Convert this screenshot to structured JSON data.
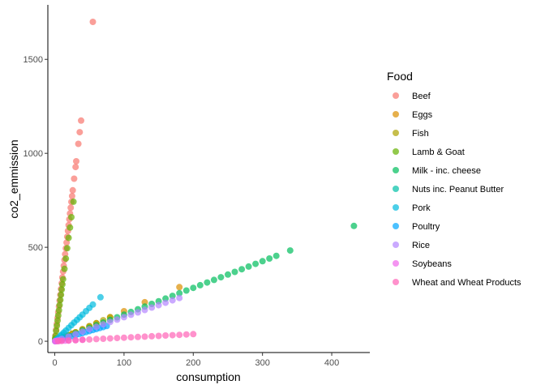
{
  "chart_data": {
    "type": "scatter",
    "title": "",
    "xlabel": "consumption",
    "ylabel": "co2_emmission",
    "xlim": [
      -10,
      455
    ],
    "ylim": [
      -60,
      1790
    ],
    "x_ticks": [
      0,
      100,
      200,
      300,
      400
    ],
    "y_ticks": [
      0,
      500,
      1000,
      1500
    ],
    "grid": false,
    "legend": {
      "title": "Food",
      "position": "right"
    },
    "point_opacity": 0.7,
    "series": [
      {
        "name": "Beef",
        "color": "#F8766D",
        "slope": 30.9,
        "x": [
          0.5,
          1,
          2,
          3,
          4,
          5,
          6,
          7,
          8,
          9,
          10,
          11,
          12,
          13,
          14,
          15,
          16,
          17,
          18,
          19,
          20,
          21,
          22,
          23,
          24,
          25,
          26,
          28,
          30,
          31,
          34,
          36,
          38,
          55
        ]
      },
      {
        "name": "Eggs",
        "color": "#DB8E00",
        "slope": 1.6,
        "x": [
          1,
          3,
          5,
          8,
          10,
          13,
          16,
          20,
          25,
          30,
          40,
          50,
          60,
          80,
          100,
          130,
          180
        ]
      },
      {
        "name": "Fish",
        "color": "#AEA200",
        "slope": 1.6,
        "x": [
          1,
          3,
          6,
          10,
          15,
          20,
          25,
          30,
          40,
          50,
          60,
          70,
          80
        ]
      },
      {
        "name": "Lamb & Goat",
        "color": "#64B200",
        "slope": 27.5,
        "x": [
          0.5,
          1,
          2,
          3,
          4,
          5,
          6,
          7,
          8,
          9,
          10,
          11,
          12,
          14,
          16,
          18,
          20,
          22,
          24,
          27
        ]
      },
      {
        "name": "Milk - inc. cheese",
        "color": "#00BD5C",
        "slope": 1.42,
        "x": [
          5,
          10,
          20,
          30,
          40,
          50,
          60,
          70,
          80,
          90,
          100,
          110,
          120,
          130,
          140,
          150,
          160,
          170,
          180,
          190,
          200,
          210,
          220,
          230,
          240,
          250,
          260,
          270,
          280,
          290,
          300,
          310,
          320,
          340,
          432
        ]
      },
      {
        "name": "Nuts inc. Peanut Butter",
        "color": "#00C1A7",
        "slope": 1.77,
        "x": [
          0.5,
          1,
          2,
          3,
          5,
          7,
          10
        ]
      },
      {
        "name": "Pork",
        "color": "#00BADE",
        "slope": 3.55,
        "x": [
          1,
          3,
          5,
          8,
          10,
          13,
          16,
          20,
          24,
          28,
          32,
          36,
          40,
          45,
          50,
          55,
          66
        ]
      },
      {
        "name": "Poultry",
        "color": "#00A6FF",
        "slope": 1.08,
        "x": [
          1,
          5,
          10,
          15,
          20,
          25,
          30,
          35,
          40,
          45,
          50,
          55,
          60,
          65,
          70,
          75
        ]
      },
      {
        "name": "Rice",
        "color": "#B385FF",
        "slope": 1.28,
        "x": [
          1,
          5,
          10,
          20,
          30,
          40,
          50,
          60,
          70,
          80,
          90,
          100,
          110,
          120,
          130,
          140,
          150,
          160,
          170,
          180
        ]
      },
      {
        "name": "Soybeans",
        "color": "#EF67EB",
        "slope": 0.19,
        "x": [
          0.5,
          1,
          3,
          6,
          10,
          15,
          20,
          30,
          40
        ]
      },
      {
        "name": "Wheat and Wheat Products",
        "color": "#FF63B6",
        "slope": 0.19,
        "x": [
          5,
          10,
          20,
          30,
          40,
          50,
          60,
          70,
          80,
          90,
          100,
          110,
          120,
          130,
          140,
          150,
          160,
          170,
          180,
          190,
          200
        ]
      }
    ]
  }
}
